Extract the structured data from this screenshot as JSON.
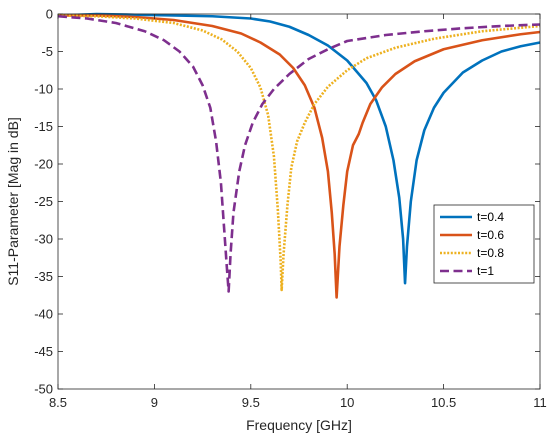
{
  "chart_data": {
    "type": "line",
    "xlabel": "Frequency [GHz]",
    "ylabel": "S11-Parameter [Mag in dB]",
    "xlim": [
      8.5,
      11
    ],
    "ylim": [
      -50,
      0
    ],
    "xticks": [
      8.5,
      9,
      9.5,
      10,
      10.5,
      11
    ],
    "yticks": [
      0,
      -5,
      -10,
      -15,
      -20,
      -25,
      -30,
      -35,
      -40,
      -45,
      -50
    ],
    "grid": false,
    "legend_position": "right",
    "series": [
      {
        "name": "t=0.4",
        "color": "#0072BD",
        "style": "solid",
        "points": [
          [
            8.5,
            -0.2
          ],
          [
            8.7,
            0.0
          ],
          [
            8.9,
            -0.1
          ],
          [
            9.1,
            -0.2
          ],
          [
            9.3,
            -0.3
          ],
          [
            9.5,
            -0.6
          ],
          [
            9.6,
            -1.0
          ],
          [
            9.7,
            -1.7
          ],
          [
            9.8,
            -2.8
          ],
          [
            9.9,
            -4.2
          ],
          [
            10.0,
            -6.2
          ],
          [
            10.1,
            -9.2
          ],
          [
            10.15,
            -11.5
          ],
          [
            10.2,
            -15.0
          ],
          [
            10.24,
            -19.5
          ],
          [
            10.27,
            -24.5
          ],
          [
            10.29,
            -30.0
          ],
          [
            10.3,
            -35.9
          ],
          [
            10.31,
            -31.0
          ],
          [
            10.33,
            -25.0
          ],
          [
            10.36,
            -19.5
          ],
          [
            10.4,
            -15.5
          ],
          [
            10.45,
            -12.5
          ],
          [
            10.5,
            -10.5
          ],
          [
            10.6,
            -7.8
          ],
          [
            10.7,
            -6.2
          ],
          [
            10.8,
            -5.0
          ],
          [
            10.9,
            -4.3
          ],
          [
            11.0,
            -3.8
          ]
        ]
      },
      {
        "name": "t=0.6",
        "color": "#D95319",
        "style": "solid",
        "points": [
          [
            8.5,
            -0.2
          ],
          [
            8.7,
            -0.2
          ],
          [
            8.9,
            -0.4
          ],
          [
            9.1,
            -0.8
          ],
          [
            9.3,
            -1.6
          ],
          [
            9.45,
            -2.6
          ],
          [
            9.55,
            -3.8
          ],
          [
            9.65,
            -5.4
          ],
          [
            9.72,
            -7.2
          ],
          [
            9.78,
            -9.5
          ],
          [
            9.83,
            -12.5
          ],
          [
            9.87,
            -16.5
          ],
          [
            9.9,
            -21.0
          ],
          [
            9.92,
            -26.5
          ],
          [
            9.935,
            -32.0
          ],
          [
            9.945,
            -37.8
          ],
          [
            9.96,
            -31.0
          ],
          [
            9.98,
            -25.5
          ],
          [
            10.0,
            -21.0
          ],
          [
            10.03,
            -17.5
          ],
          [
            10.06,
            -16.0
          ],
          [
            10.08,
            -14.5
          ],
          [
            10.12,
            -12.0
          ],
          [
            10.18,
            -9.8
          ],
          [
            10.25,
            -8.0
          ],
          [
            10.35,
            -6.3
          ],
          [
            10.5,
            -4.7
          ],
          [
            10.7,
            -3.5
          ],
          [
            10.9,
            -2.7
          ],
          [
            11.0,
            -2.4
          ]
        ]
      },
      {
        "name": "t=0.8",
        "color": "#EDB120",
        "style": "dotted",
        "points": [
          [
            8.5,
            -0.2
          ],
          [
            8.7,
            -0.3
          ],
          [
            8.9,
            -0.6
          ],
          [
            9.1,
            -1.2
          ],
          [
            9.25,
            -2.2
          ],
          [
            9.35,
            -3.4
          ],
          [
            9.43,
            -5.0
          ],
          [
            9.5,
            -7.2
          ],
          [
            9.55,
            -9.8
          ],
          [
            9.59,
            -13.5
          ],
          [
            9.62,
            -19.0
          ],
          [
            9.64,
            -26.0
          ],
          [
            9.655,
            -33.0
          ],
          [
            9.66,
            -36.8
          ],
          [
            9.67,
            -32.0
          ],
          [
            9.69,
            -25.5
          ],
          [
            9.71,
            -20.5
          ],
          [
            9.74,
            -17.0
          ],
          [
            9.78,
            -14.5
          ],
          [
            9.83,
            -12.0
          ],
          [
            9.9,
            -9.7
          ],
          [
            10.0,
            -7.5
          ],
          [
            10.1,
            -5.9
          ],
          [
            10.25,
            -4.5
          ],
          [
            10.45,
            -3.3
          ],
          [
            10.7,
            -2.3
          ],
          [
            11.0,
            -1.6
          ]
        ]
      },
      {
        "name": "t=1",
        "color": "#7E2F8E",
        "style": "dashed",
        "points": [
          [
            8.5,
            -0.3
          ],
          [
            8.65,
            -0.6
          ],
          [
            8.8,
            -1.2
          ],
          [
            8.95,
            -2.3
          ],
          [
            9.05,
            -3.5
          ],
          [
            9.13,
            -5.0
          ],
          [
            9.2,
            -7.0
          ],
          [
            9.25,
            -9.5
          ],
          [
            9.29,
            -12.5
          ],
          [
            9.32,
            -17.0
          ],
          [
            9.345,
            -22.5
          ],
          [
            9.36,
            -28.0
          ],
          [
            9.375,
            -33.5
          ],
          [
            9.385,
            -37.0
          ],
          [
            9.395,
            -32.0
          ],
          [
            9.41,
            -26.5
          ],
          [
            9.44,
            -21.0
          ],
          [
            9.47,
            -17.5
          ],
          [
            9.51,
            -14.5
          ],
          [
            9.56,
            -12.0
          ],
          [
            9.62,
            -10.0
          ],
          [
            9.7,
            -8.0
          ],
          [
            9.8,
            -6.0
          ],
          [
            9.9,
            -4.7
          ],
          [
            10.0,
            -3.6
          ],
          [
            10.2,
            -2.8
          ],
          [
            10.4,
            -2.3
          ],
          [
            10.6,
            -1.9
          ],
          [
            10.8,
            -1.6
          ],
          [
            11.0,
            -1.4
          ]
        ]
      }
    ]
  }
}
